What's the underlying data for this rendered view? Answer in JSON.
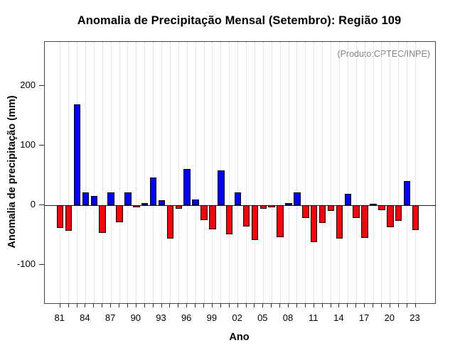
{
  "annotation": "(Produto:CPTEC/INPE)",
  "chart_data": {
    "type": "bar",
    "title": "Anomalia de Precipitação Mensal (Setembro): Região 109",
    "xlabel": "Ano",
    "ylabel": "Anomalia de precipitação (mm)",
    "ylim": [
      -165,
      275
    ],
    "y_ticks": [
      200,
      100,
      0,
      -100
    ],
    "x_tick_labels": [
      "81",
      "84",
      "87",
      "90",
      "93",
      "96",
      "99",
      "02",
      "05",
      "08",
      "11",
      "14",
      "17",
      "20",
      "23"
    ],
    "x_label_every": 3,
    "grid": "vertical-dotted",
    "legend": "none",
    "colors": {
      "positive": "#0000fa",
      "negative": "#fb0006",
      "bar_border": "#000000",
      "grid": "#cecece",
      "frame": "#4a4a4a",
      "annotation_text": "#848484"
    },
    "years": [
      1981,
      1982,
      1983,
      1984,
      1985,
      1986,
      1987,
      1988,
      1989,
      1990,
      1991,
      1992,
      1993,
      1994,
      1995,
      1996,
      1997,
      1998,
      1999,
      2000,
      2001,
      2002,
      2003,
      2004,
      2005,
      2006,
      2007,
      2008,
      2009,
      2010,
      2011,
      2012,
      2013,
      2014,
      2015,
      2016,
      2017,
      2018,
      2019,
      2020,
      2021,
      2022,
      2023
    ],
    "values": [
      -38,
      -43,
      170,
      21,
      16,
      -47,
      21,
      -29,
      21,
      -4,
      3,
      47,
      8,
      -56,
      -6,
      61,
      9,
      -25,
      -41,
      59,
      -49,
      22,
      -36,
      -59,
      -6,
      -4,
      -54,
      3,
      22,
      -21,
      -62,
      -30,
      -10,
      -56,
      19,
      -21,
      -55,
      2,
      -8,
      -37,
      -26,
      40,
      -42
    ]
  }
}
